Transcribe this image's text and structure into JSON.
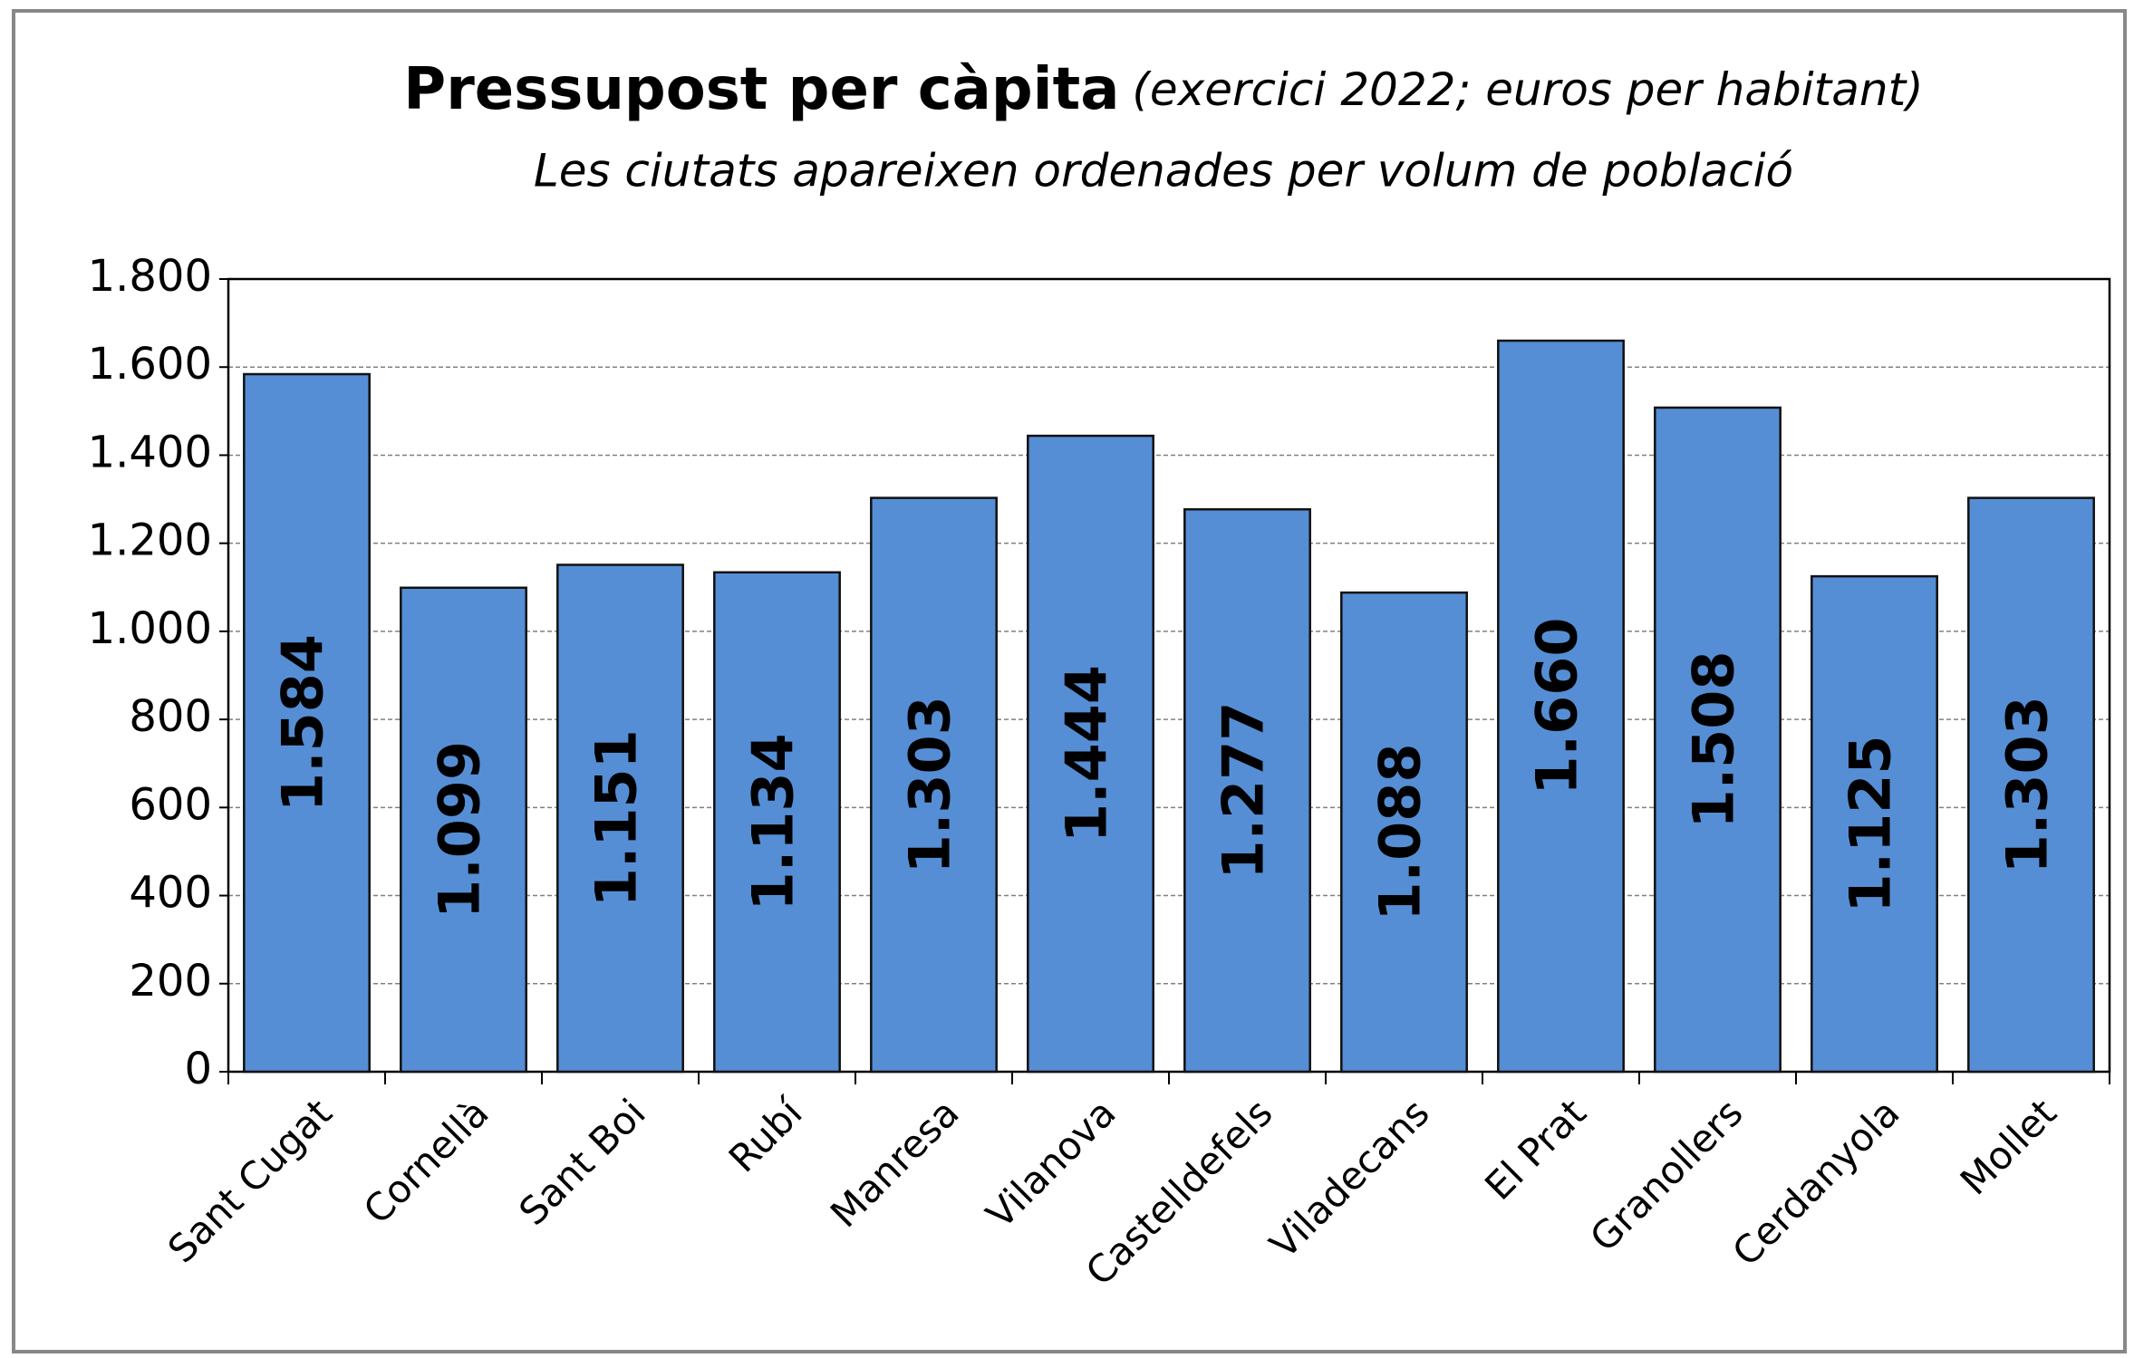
{
  "chart_data": {
    "type": "bar",
    "title": "Pressupost per càpita",
    "title_note": "(exercici 2022; euros per habitant)",
    "subtitle": "Les ciutats apareixen ordenades per volum de població",
    "categories": [
      "Sant Cugat",
      "Cornellà",
      "Sant Boi",
      "Rubí",
      "Manresa",
      "Vilanova",
      "Castelldefels",
      "Viladecans",
      "El Prat",
      "Granollers",
      "Cerdanyola",
      "Mollet"
    ],
    "values": [
      1584,
      1099,
      1151,
      1134,
      1303,
      1444,
      1277,
      1088,
      1660,
      1508,
      1125,
      1303
    ],
    "value_labels": [
      "1.584",
      "1.099",
      "1.151",
      "1.134",
      "1.303",
      "1.444",
      "1.277",
      "1.088",
      "1.660",
      "1.508",
      "1.125",
      "1.303"
    ],
    "color": "#558ed5",
    "ylim": [
      0,
      1800
    ],
    "yticks": [
      0,
      200,
      400,
      600,
      800,
      {
        "value": 1000,
        "label": "1.000"
      },
      {
        "value": 1200,
        "label": "1.200"
      },
      {
        "value": 1400,
        "label": "1.400"
      },
      {
        "value": 1600,
        "label": "1.600"
      },
      {
        "value": 1800,
        "label": "1.800"
      }
    ],
    "grid": true
  }
}
